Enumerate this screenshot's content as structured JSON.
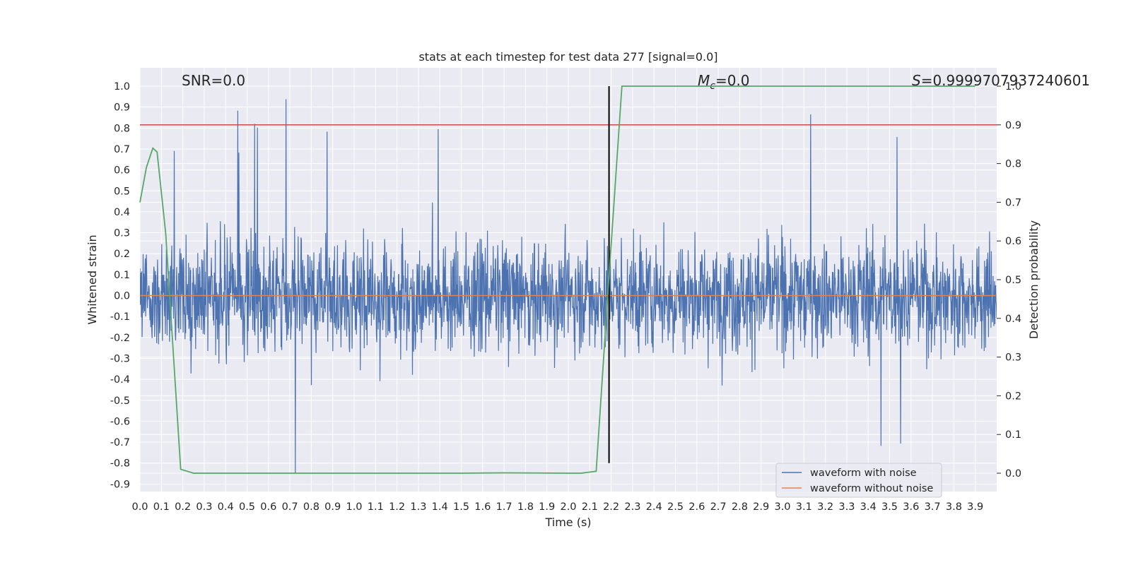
{
  "chart_data": {
    "type": "line",
    "title": "stats at each timestep for test data 277 [signal=0.0]",
    "xlabel": "Time (s)",
    "ylabel": "Whitened strain",
    "y2label": "Detection probability",
    "xlim": [
      0.0,
      4.0
    ],
    "ylim": [
      -0.95,
      1.09
    ],
    "y2lim": [
      -0.05,
      1.0
    ],
    "grid": true,
    "x_ticks": [
      "0.0",
      "0.1",
      "0.2",
      "0.3",
      "0.4",
      "0.5",
      "0.6",
      "0.7",
      "0.8",
      "0.9",
      "1.0",
      "1.1",
      "1.2",
      "1.3",
      "1.4",
      "1.5",
      "1.6",
      "1.7",
      "1.8",
      "1.9",
      "2.0",
      "2.1",
      "2.2",
      "2.3",
      "2.4",
      "2.5",
      "2.6",
      "2.7",
      "2.8",
      "2.9",
      "3.0",
      "3.1",
      "3.2",
      "3.3",
      "3.4",
      "3.5",
      "3.6",
      "3.7",
      "3.8",
      "3.9"
    ],
    "y_ticks": [
      "1.0",
      "0.9",
      "0.8",
      "0.7",
      "0.6",
      "0.5",
      "0.4",
      "0.3",
      "0.2",
      "0.1",
      "0.0",
      "-0.1",
      "-0.2",
      "-0.3",
      "-0.4",
      "-0.5",
      "-0.6",
      "-0.7",
      "-0.8",
      "-0.9"
    ],
    "y2_ticks": [
      "1.0",
      "0.9",
      "0.8",
      "0.7",
      "0.6",
      "0.5",
      "0.4",
      "0.3",
      "0.2",
      "0.1",
      "0.0"
    ],
    "annotations": {
      "snr": "SNR=0.0",
      "mc_symbol": "M",
      "mc_sub": "c",
      "mc_value": "=0.0",
      "s_symbol": "S",
      "s_value": "=0.9999707937240601"
    },
    "legend_position": "lower-right",
    "legend": [
      {
        "label": "waveform with noise",
        "color": "#4c72b0"
      },
      {
        "label": "waveform without noise",
        "color": "#dd8452"
      }
    ],
    "series": [
      {
        "name": "waveform with noise",
        "color": "#4c72b0",
        "axis": "left",
        "noise_envelope": {
          "typical_max": 0.42,
          "typical_min": -0.45,
          "peak_max": 1.0,
          "peak_min": -0.85
        }
      },
      {
        "name": "waveform without noise",
        "color": "#dd8452",
        "axis": "left",
        "x": [
          0.0,
          4.0
        ],
        "y": [
          0.0,
          0.0
        ]
      },
      {
        "color": "#55a868",
        "axis": "right",
        "x": [
          0.0,
          0.03,
          0.06,
          0.08,
          0.12,
          0.19,
          0.25,
          0.5,
          1.0,
          1.5,
          1.7,
          2.0,
          2.06,
          2.13,
          2.19,
          2.25,
          2.5,
          3.0,
          3.5,
          3.9
        ],
        "y": [
          0.7,
          0.79,
          0.84,
          0.83,
          0.62,
          0.01,
          0.0,
          0.0,
          0.0,
          0.0,
          0.001,
          0.0,
          0.0,
          0.005,
          0.51,
          1.0,
          1.0,
          1.0,
          1.0,
          1.0
        ]
      }
    ],
    "threshold_line": {
      "axis": "right",
      "y": 0.9,
      "color": "#c44e52"
    },
    "vertical_line": {
      "x": 2.19,
      "y_top": 1.0,
      "y_bottom": -0.8,
      "color": "#000000"
    }
  }
}
